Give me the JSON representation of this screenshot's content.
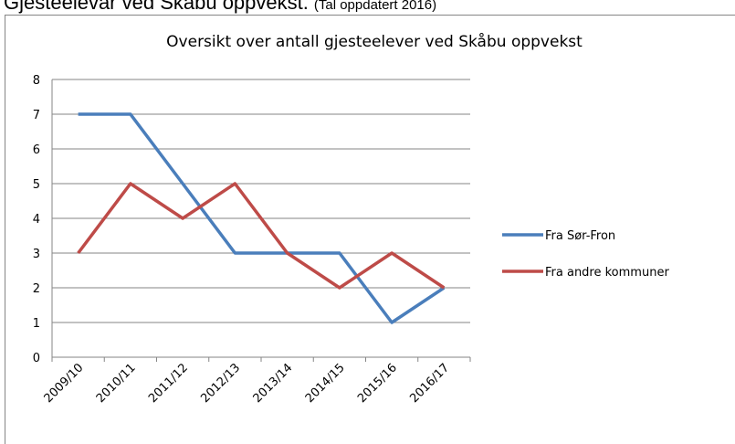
{
  "header": {
    "title": "Gjesteelevar ved Skåbu oppvekst.",
    "note": "(Tal oppdatert 2016)"
  },
  "chart_data": {
    "type": "line",
    "title": "Oversikt over antall gjesteelever ved Skåbu oppvekst",
    "categories": [
      "2009/10",
      "2010/11",
      "2011/12",
      "2012/13",
      "2013/14",
      "2014/15",
      "2015/16",
      "2016/17"
    ],
    "series": [
      {
        "name": "Fra Sør-Fron",
        "color": "#4a7ebb",
        "values": [
          7,
          7,
          5,
          3,
          3,
          3,
          1,
          2
        ]
      },
      {
        "name": "Fra andre kommuner",
        "color": "#be4b48",
        "values": [
          3,
          5,
          4,
          5,
          3,
          2,
          3,
          2
        ]
      }
    ],
    "ylim": [
      0,
      8
    ],
    "yticks": [
      0,
      1,
      2,
      3,
      4,
      5,
      6,
      7,
      8
    ],
    "grid": true,
    "legend": "right"
  }
}
